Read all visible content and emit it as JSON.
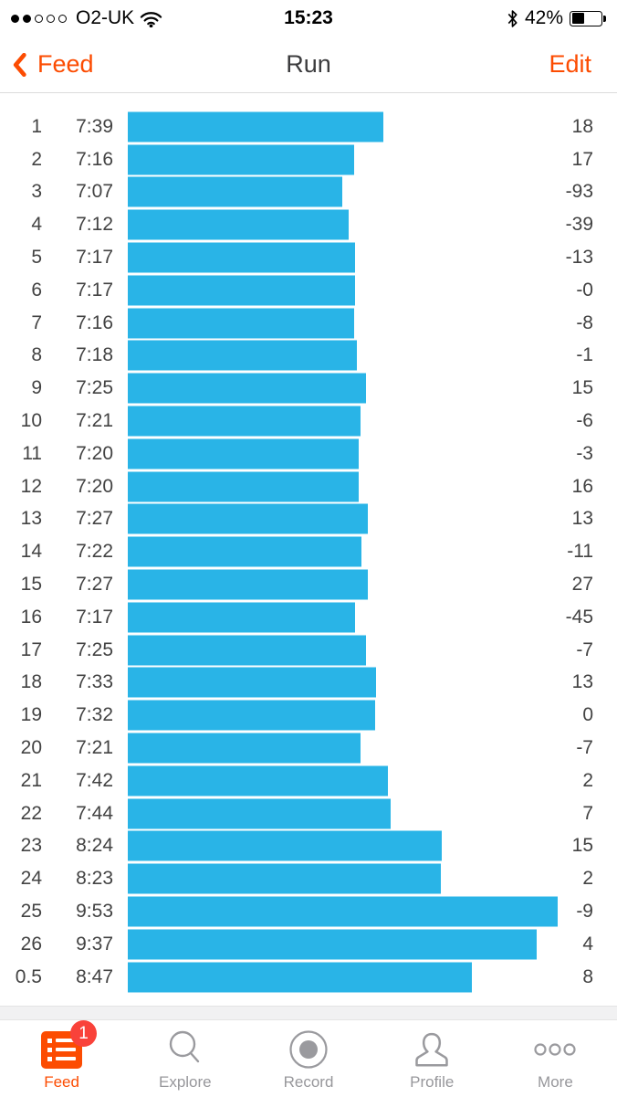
{
  "status_bar": {
    "carrier": "O2-UK",
    "time": "15:23",
    "battery_percent": "42%",
    "signal": {
      "filled_dots": 2,
      "total_dots": 5
    }
  },
  "nav_bar": {
    "back_label": "Feed",
    "title": "Run",
    "edit_label": "Edit"
  },
  "chart_data": {
    "type": "bar",
    "orientation": "horizontal",
    "bar_color": "#29B4E7",
    "bar_value_field": "pace",
    "pace_range_sec": [
      427,
      593
    ],
    "columns": [
      "split",
      "pace",
      "elevation_change"
    ],
    "rows": [
      {
        "split": "1",
        "pace": "7:39",
        "elev": "18"
      },
      {
        "split": "2",
        "pace": "7:16",
        "elev": "17"
      },
      {
        "split": "3",
        "pace": "7:07",
        "elev": "-93"
      },
      {
        "split": "4",
        "pace": "7:12",
        "elev": "-39"
      },
      {
        "split": "5",
        "pace": "7:17",
        "elev": "-13"
      },
      {
        "split": "6",
        "pace": "7:17",
        "elev": "-0"
      },
      {
        "split": "7",
        "pace": "7:16",
        "elev": "-8"
      },
      {
        "split": "8",
        "pace": "7:18",
        "elev": "-1"
      },
      {
        "split": "9",
        "pace": "7:25",
        "elev": "15"
      },
      {
        "split": "10",
        "pace": "7:21",
        "elev": "-6"
      },
      {
        "split": "11",
        "pace": "7:20",
        "elev": "-3"
      },
      {
        "split": "12",
        "pace": "7:20",
        "elev": "16"
      },
      {
        "split": "13",
        "pace": "7:27",
        "elev": "13"
      },
      {
        "split": "14",
        "pace": "7:22",
        "elev": "-11"
      },
      {
        "split": "15",
        "pace": "7:27",
        "elev": "27"
      },
      {
        "split": "16",
        "pace": "7:17",
        "elev": "-45"
      },
      {
        "split": "17",
        "pace": "7:25",
        "elev": "-7"
      },
      {
        "split": "18",
        "pace": "7:33",
        "elev": "13"
      },
      {
        "split": "19",
        "pace": "7:32",
        "elev": "0"
      },
      {
        "split": "20",
        "pace": "7:21",
        "elev": "-7"
      },
      {
        "split": "21",
        "pace": "7:42",
        "elev": "2"
      },
      {
        "split": "22",
        "pace": "7:44",
        "elev": "7"
      },
      {
        "split": "23",
        "pace": "8:24",
        "elev": "15"
      },
      {
        "split": "24",
        "pace": "8:23",
        "elev": "2"
      },
      {
        "split": "25",
        "pace": "9:53",
        "elev": "-9"
      },
      {
        "split": "26",
        "pace": "9:37",
        "elev": "4"
      },
      {
        "split": "0.5",
        "pace": "8:47",
        "elev": "8"
      }
    ]
  },
  "tab_bar": {
    "items": [
      {
        "label": "Feed",
        "active": true,
        "badge": "1"
      },
      {
        "label": "Explore",
        "active": false
      },
      {
        "label": "Record",
        "active": false
      },
      {
        "label": "Profile",
        "active": false
      },
      {
        "label": "More",
        "active": false
      }
    ]
  },
  "colors": {
    "accent_orange": "#FC4C02",
    "bar_blue": "#29B4E7",
    "badge_red": "#F9423A"
  }
}
